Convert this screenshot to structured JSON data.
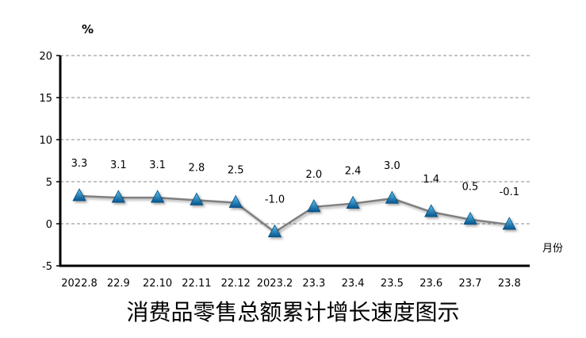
{
  "chart_data": {
    "type": "line",
    "title": "消费品零售总额累计增长速度图示",
    "ylabel": "%",
    "xlabel": "月份",
    "categories": [
      "2022.8",
      "22.9",
      "22.10",
      "22.11",
      "22.12",
      "2023.2",
      "23.3",
      "23.4",
      "23.5",
      "23.6",
      "23.7",
      "23.8"
    ],
    "values": [
      3.3,
      3.1,
      3.1,
      2.8,
      2.5,
      -1.0,
      2.0,
      2.4,
      3.0,
      1.4,
      0.5,
      -0.1
    ],
    "data_labels": [
      "3.3",
      "3.1",
      "3.1",
      "2.8",
      "2.5",
      "-1.0",
      "2.0",
      "2.4",
      "3.0",
      "1.4",
      "0.5",
      "-0.1"
    ],
    "ylim": [
      -5,
      20
    ],
    "yticks": [
      "-5",
      "0",
      "5",
      "10",
      "15",
      "20"
    ],
    "grid": true,
    "line_color": "#7f7f7f",
    "marker": "triangle",
    "marker_color": "#0e7fc0"
  }
}
